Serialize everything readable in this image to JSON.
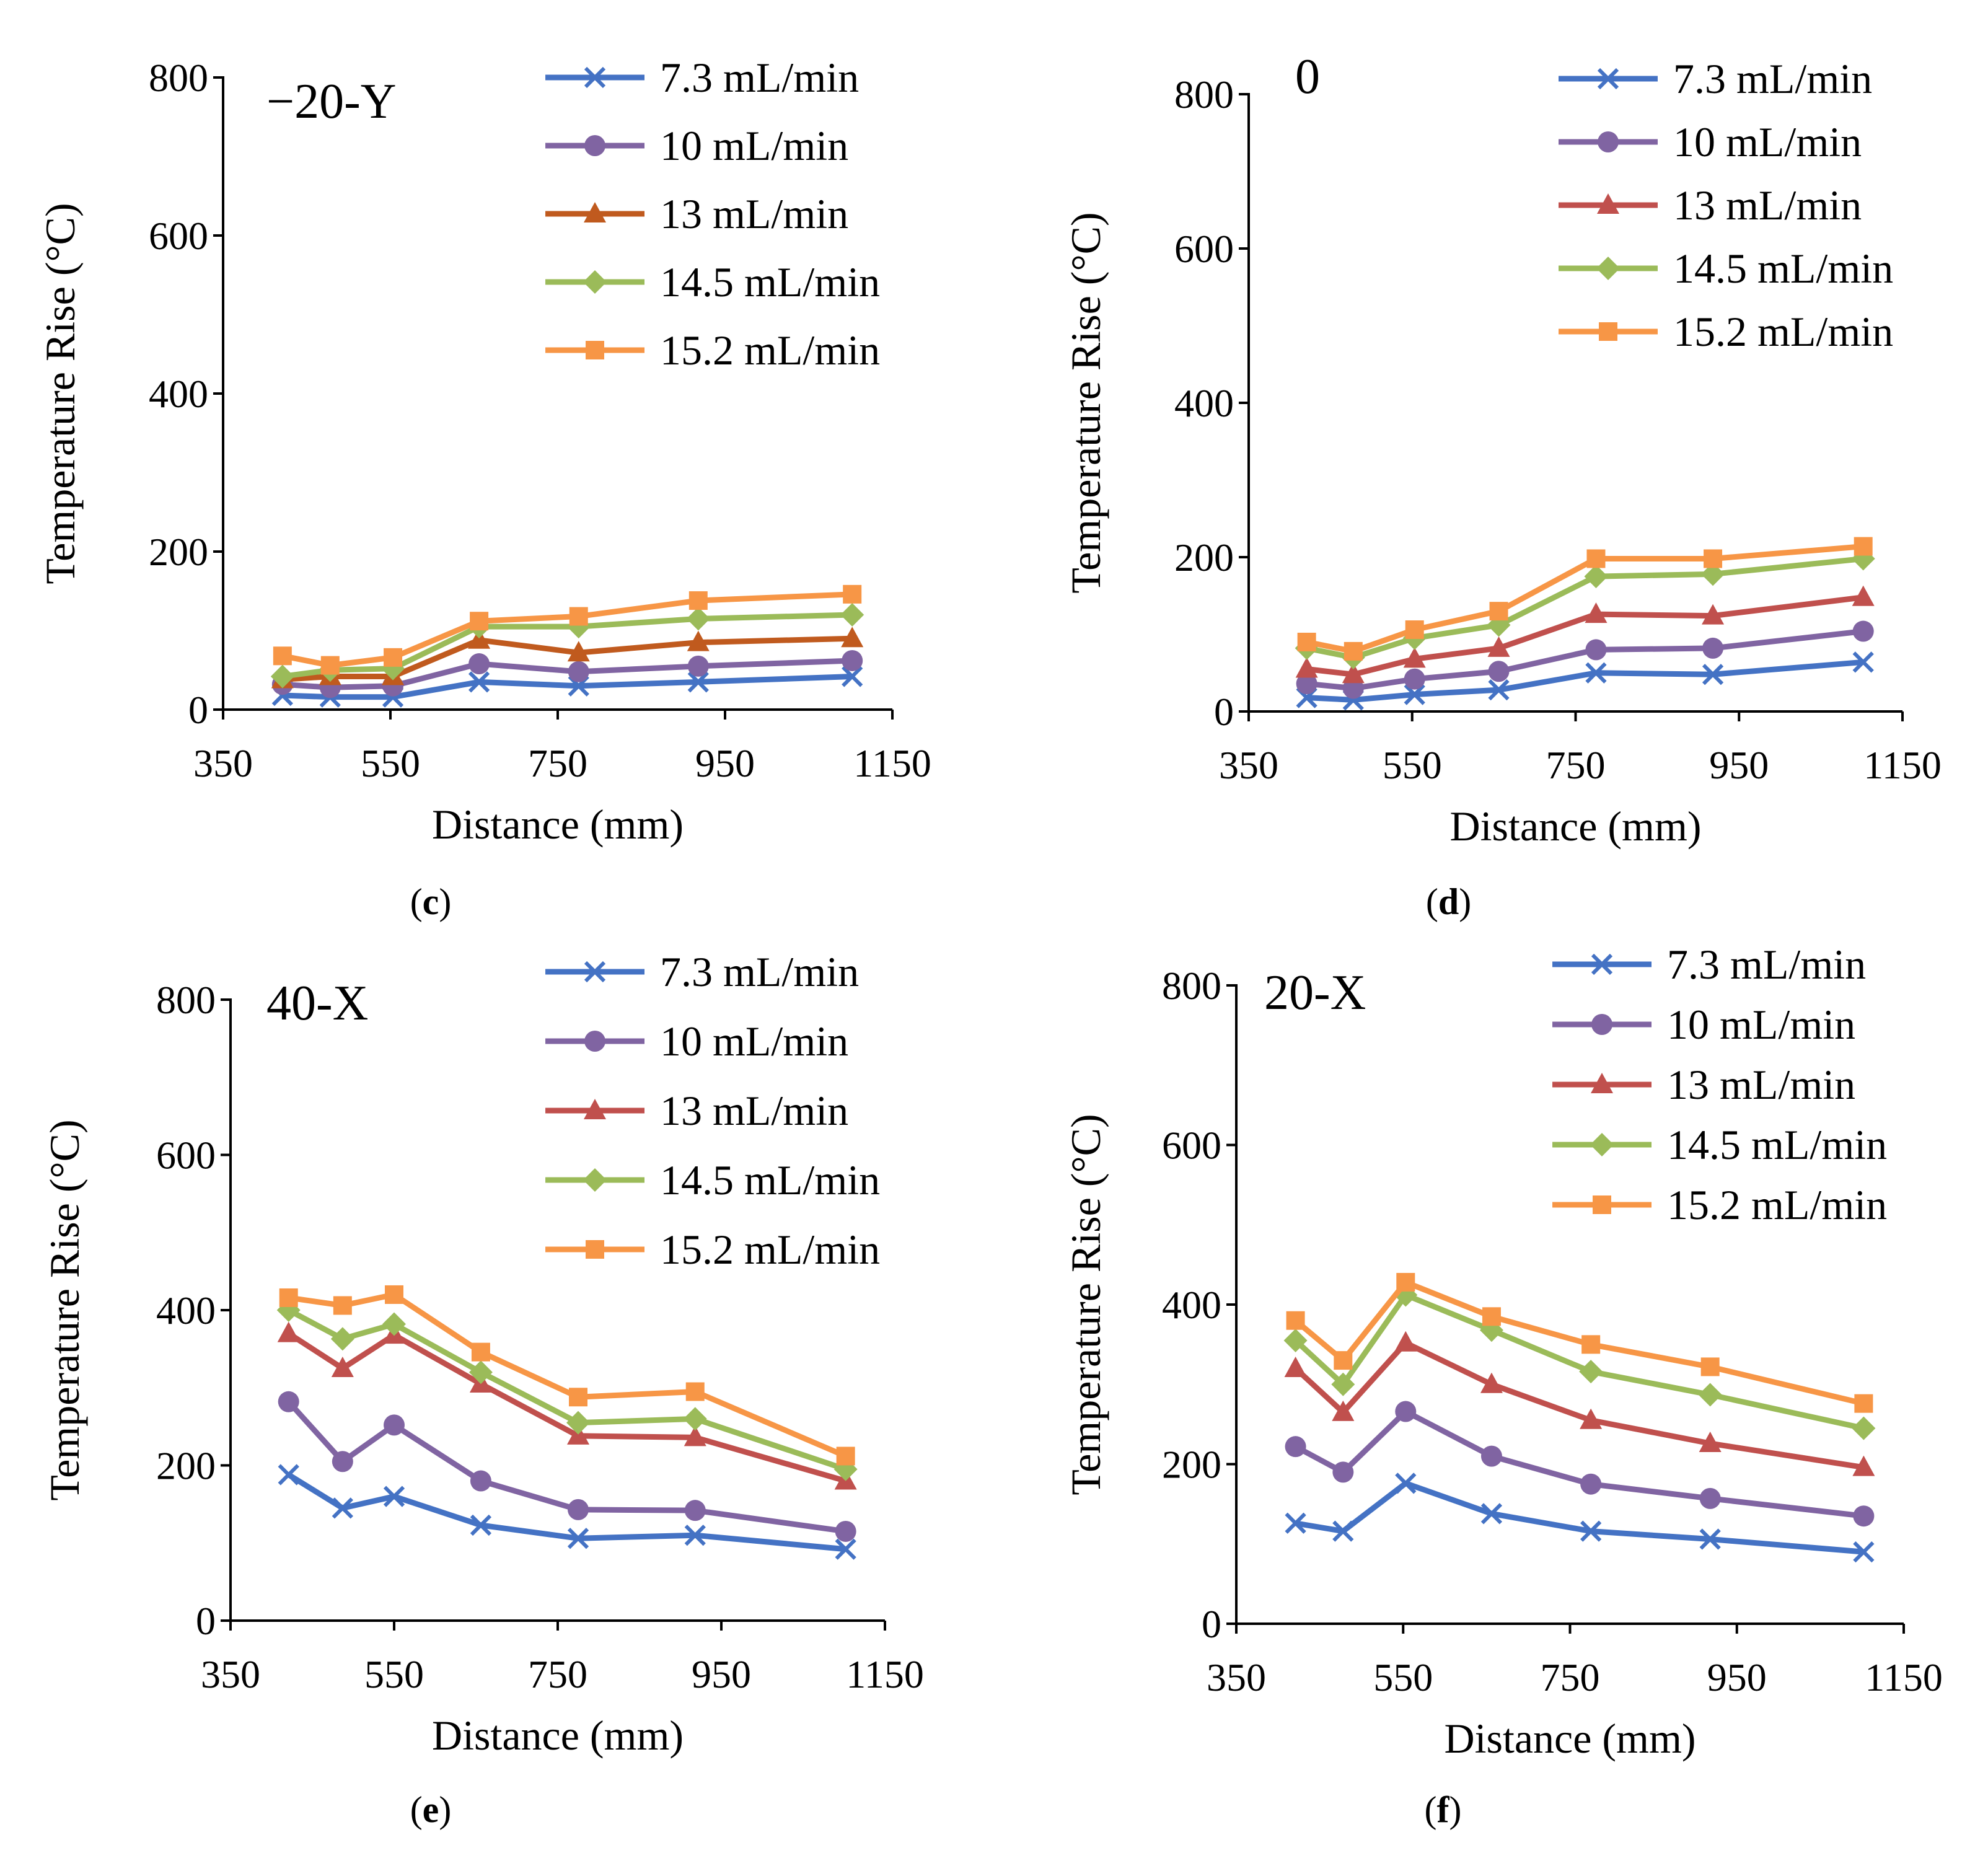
{
  "chart_data": [
    {
      "type": "line",
      "panel_title": "−20-Y",
      "caption_letter": "c",
      "xlabel": "Distance (mm)",
      "ylabel": "Temperature Rise (°C)",
      "xlim": [
        350,
        1150
      ],
      "ylim": [
        0,
        800
      ],
      "xticks": [
        350,
        550,
        750,
        950,
        1150
      ],
      "yticks": [
        0,
        200,
        400,
        600,
        800
      ],
      "x": [
        421,
        478,
        553,
        656,
        775,
        918,
        1102
      ],
      "series": [
        {
          "name": "7.3 mL/min",
          "marker": "x",
          "color": "#4472C4",
          "values": [
            18,
            16,
            16,
            35,
            30,
            35,
            42
          ]
        },
        {
          "name": "10 mL/min",
          "marker": "circle",
          "color": "#8064A2",
          "values": [
            32,
            28,
            30,
            58,
            48,
            55,
            62
          ]
        },
        {
          "name": "13 mL/min",
          "marker": "triangle",
          "color": "#C05A1E",
          "values": [
            38,
            42,
            42,
            88,
            72,
            85,
            90
          ]
        },
        {
          "name": "14.5 mL/min",
          "marker": "diamond",
          "color": "#9BBB59",
          "values": [
            42,
            50,
            52,
            105,
            105,
            115,
            120
          ]
        },
        {
          "name": "15.2 mL/min",
          "marker": "square",
          "color": "#F79646",
          "values": [
            68,
            56,
            66,
            112,
            118,
            138,
            146
          ]
        }
      ]
    },
    {
      "type": "line",
      "panel_title": "0",
      "caption_letter": "d",
      "xlabel": "Distance (mm)",
      "ylabel": "Temperature Rise (°C)",
      "xlim": [
        350,
        1150
      ],
      "ylim": [
        0,
        800
      ],
      "xticks": [
        350,
        550,
        750,
        950,
        1150
      ],
      "yticks": [
        0,
        200,
        400,
        600,
        800
      ],
      "x": [
        421,
        478,
        553,
        656,
        775,
        918,
        1102
      ],
      "series": [
        {
          "name": "7.3 mL/min",
          "marker": "x",
          "color": "#4472C4",
          "values": [
            18,
            15,
            22,
            28,
            50,
            48,
            64
          ]
        },
        {
          "name": "10 mL/min",
          "marker": "circle",
          "color": "#8064A2",
          "values": [
            36,
            30,
            42,
            52,
            80,
            82,
            104
          ]
        },
        {
          "name": "13 mL/min",
          "marker": "triangle",
          "color": "#C0504D",
          "values": [
            55,
            48,
            68,
            82,
            126,
            124,
            148
          ]
        },
        {
          "name": "14.5 mL/min",
          "marker": "diamond",
          "color": "#9BBB59",
          "values": [
            82,
            70,
            95,
            112,
            175,
            178,
            198
          ]
        },
        {
          "name": "15.2 mL/min",
          "marker": "square",
          "color": "#F79646",
          "values": [
            90,
            78,
            106,
            130,
            198,
            198,
            214
          ]
        }
      ]
    },
    {
      "type": "line",
      "panel_title": "40-X",
      "caption_letter": "e",
      "xlabel": "Distance (mm)",
      "ylabel": "Temperature Rise (°C)",
      "xlim": [
        350,
        1150
      ],
      "ylim": [
        0,
        800
      ],
      "xticks": [
        350,
        550,
        750,
        950,
        1150
      ],
      "yticks": [
        0,
        200,
        400,
        600,
        800
      ],
      "x": [
        421,
        487,
        550,
        656,
        775,
        918,
        1102
      ],
      "series": [
        {
          "name": "7.3 mL/min",
          "marker": "x",
          "color": "#4472C4",
          "values": [
            188,
            145,
            160,
            123,
            106,
            110,
            92
          ]
        },
        {
          "name": "10 mL/min",
          "marker": "circle",
          "color": "#8064A2",
          "values": [
            282,
            205,
            252,
            180,
            143,
            142,
            115
          ]
        },
        {
          "name": "13 mL/min",
          "marker": "triangle",
          "color": "#C0504D",
          "values": [
            370,
            325,
            368,
            305,
            238,
            236,
            180
          ]
        },
        {
          "name": "14.5 mL/min",
          "marker": "diamond",
          "color": "#9BBB59",
          "values": [
            400,
            363,
            382,
            320,
            255,
            260,
            195
          ]
        },
        {
          "name": "15.2 mL/min",
          "marker": "square",
          "color": "#F79646",
          "values": [
            416,
            406,
            420,
            346,
            288,
            295,
            212
          ]
        }
      ]
    },
    {
      "type": "line",
      "panel_title": "20-X",
      "caption_letter": "f",
      "xlabel": "Distance (mm)",
      "ylabel": "Temperature Rise (°C)",
      "xlim": [
        350,
        1150
      ],
      "ylim": [
        0,
        800
      ],
      "xticks": [
        350,
        550,
        750,
        950,
        1150
      ],
      "yticks": [
        0,
        200,
        400,
        600,
        800
      ],
      "x": [
        421,
        478,
        553,
        656,
        775,
        918,
        1102
      ],
      "series": [
        {
          "name": "7.3 mL/min",
          "marker": "x",
          "color": "#4472C4",
          "values": [
            126,
            116,
            176,
            138,
            116,
            106,
            90
          ]
        },
        {
          "name": "10 mL/min",
          "marker": "circle",
          "color": "#8064A2",
          "values": [
            222,
            190,
            266,
            210,
            175,
            157,
            135
          ]
        },
        {
          "name": "13 mL/min",
          "marker": "triangle",
          "color": "#C0504D",
          "values": [
            320,
            265,
            352,
            300,
            255,
            226,
            196
          ]
        },
        {
          "name": "14.5 mL/min",
          "marker": "diamond",
          "color": "#9BBB59",
          "values": [
            355,
            300,
            412,
            368,
            316,
            287,
            245
          ]
        },
        {
          "name": "15.2 mL/min",
          "marker": "square",
          "color": "#F79646",
          "values": [
            380,
            330,
            428,
            385,
            350,
            322,
            276
          ]
        }
      ]
    }
  ]
}
